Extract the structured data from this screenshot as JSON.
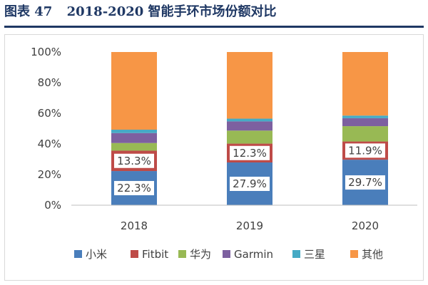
{
  "figure": {
    "label": "图表 47",
    "title": "2018-2020 智能手环市场份额对比"
  },
  "colors": {
    "title": "#1f3864",
    "axis": "#bfbfbf",
    "label_bg": "#ffffff"
  },
  "chart_data": {
    "type": "bar",
    "stacked": true,
    "percent": true,
    "categories": [
      "2018",
      "2019",
      "2020"
    ],
    "series": [
      {
        "name": "小米",
        "color": "#4a7ebb",
        "values": [
          22.3,
          27.9,
          29.7
        ],
        "labels": [
          "22.3%",
          "27.9%",
          "29.7%"
        ]
      },
      {
        "name": "Fitbit",
        "color": "#be4b48",
        "values": [
          13.3,
          12.3,
          11.9
        ],
        "labels": [
          "13.3%",
          "12.3%",
          "11.9%"
        ]
      },
      {
        "name": "华为",
        "color": "#98b954",
        "values": [
          5.0,
          8.5,
          10.0
        ],
        "labels": [
          null,
          null,
          null
        ]
      },
      {
        "name": "Garmin",
        "color": "#7d60a0",
        "values": [
          6.5,
          6.0,
          5.2
        ],
        "labels": [
          null,
          null,
          null
        ]
      },
      {
        "name": "三星",
        "color": "#46aac5",
        "values": [
          2.2,
          1.8,
          1.7
        ],
        "labels": [
          null,
          null,
          null
        ]
      },
      {
        "name": "其他",
        "color": "#f79646",
        "values": [
          50.7,
          43.5,
          41.5
        ],
        "labels": [
          null,
          null,
          null
        ]
      }
    ],
    "ylim": [
      0,
      100
    ],
    "yticks": [
      "0%",
      "20%",
      "40%",
      "60%",
      "80%",
      "100%"
    ],
    "ytick_values": [
      0,
      20,
      40,
      60,
      80,
      100
    ],
    "grid": false,
    "legend_position": "bottom"
  }
}
